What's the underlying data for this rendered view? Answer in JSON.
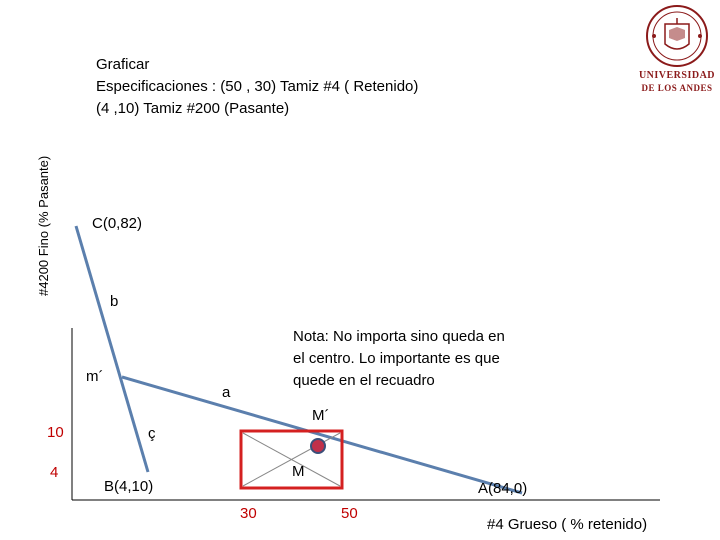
{
  "header": {
    "line1": "Graficar",
    "line2": "Especificaciones : (50 , 30)   Tamiz #4 ( Retenido)",
    "line3": "(4 ,10)   Tamiz #200 (Pasante)"
  },
  "axes": {
    "y_label": "#4200 Fino  (% Pasante)",
    "x_label": "#4 Grueso ( % retenido)",
    "y_ticks": [
      "10",
      "4"
    ],
    "x_ticks": [
      "30",
      "50"
    ]
  },
  "points": {
    "C": "C(0,82)",
    "B": "B(4,10)",
    "A": "A(84,0)",
    "M": "M",
    "M_prime": "M´",
    "m_prime": "m´",
    "a": "a",
    "b": "b",
    "c": "ç"
  },
  "note": {
    "line1": "Nota: No importa sino queda en",
    "line2": "el centro. Lo importante es que",
    "line3": "quede en el recuadro"
  },
  "logo": {
    "line1": "UNIVERSIDAD",
    "line2": "DE LOS ANDES"
  },
  "colors": {
    "line": "#5b7fad",
    "box": "#d42020",
    "point": "#c0304a",
    "tick_labels": "#c00000",
    "logo": "#8b1a1a"
  }
}
